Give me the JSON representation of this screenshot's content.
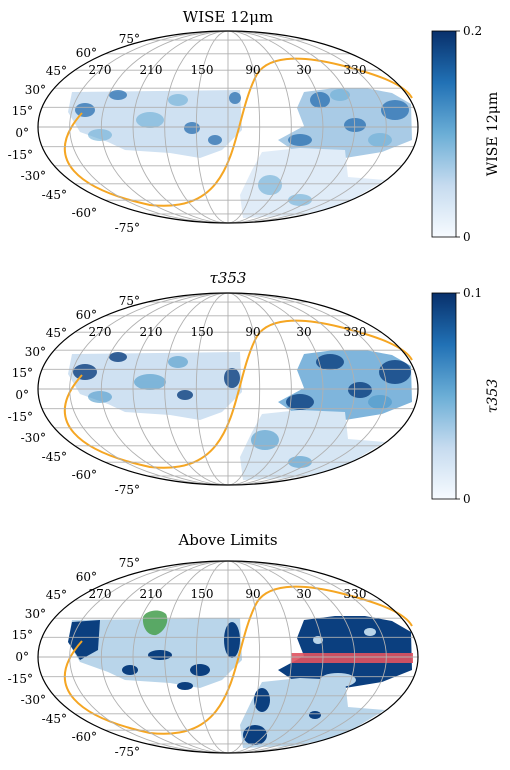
{
  "chart_data": [
    {
      "type": "heatmap",
      "title": "WISE 12μm",
      "projection": "mollweide",
      "lon_ticks": [
        "270",
        "210",
        "150",
        "90",
        "30",
        "330"
      ],
      "lat_ticks": [
        "75°",
        "60°",
        "45°",
        "30°",
        "15°",
        "0°",
        "-15°",
        "-30°",
        "-45°",
        "-60°",
        "-75°"
      ],
      "colorbar": {
        "label": "WISE 12μm",
        "min_label": "0",
        "max_label": "0.2",
        "min": 0,
        "max": 0.2,
        "cmap": [
          "#f7fbff",
          "#c6dbef",
          "#6baed6",
          "#2171b5",
          "#08306b"
        ]
      },
      "ecliptic_color": "#f5a623",
      "grid": true
    },
    {
      "type": "heatmap",
      "title": "τ353",
      "projection": "mollweide",
      "lon_ticks": [
        "270",
        "210",
        "150",
        "90",
        "30",
        "330"
      ],
      "lat_ticks": [
        "75°",
        "60°",
        "45°",
        "30°",
        "15°",
        "0°",
        "-15°",
        "-30°",
        "-45°",
        "-60°",
        "-75°"
      ],
      "colorbar": {
        "label": "τ353",
        "min_label": "0",
        "max_label": "0.1",
        "min": 0,
        "max": 0.1,
        "cmap": [
          "#f7fbff",
          "#c6dbef",
          "#6baed6",
          "#2171b5",
          "#08306b"
        ]
      },
      "ecliptic_color": "#f5a623",
      "grid": true
    },
    {
      "type": "heatmap",
      "title": "Above Limits",
      "projection": "mollweide",
      "lon_ticks": [
        "270",
        "210",
        "150",
        "90",
        "30",
        "330"
      ],
      "lat_ticks": [
        "75°",
        "60°",
        "45°",
        "30°",
        "15°",
        "0°",
        "-15°",
        "-30°",
        "-45°",
        "-60°",
        "-75°"
      ],
      "colors": {
        "light": "#b9d5ea",
        "dark": "#0b3f7f",
        "green": "#4fa356",
        "red": "#e0525f"
      },
      "ecliptic_color": "#f5a623",
      "grid": true
    }
  ]
}
